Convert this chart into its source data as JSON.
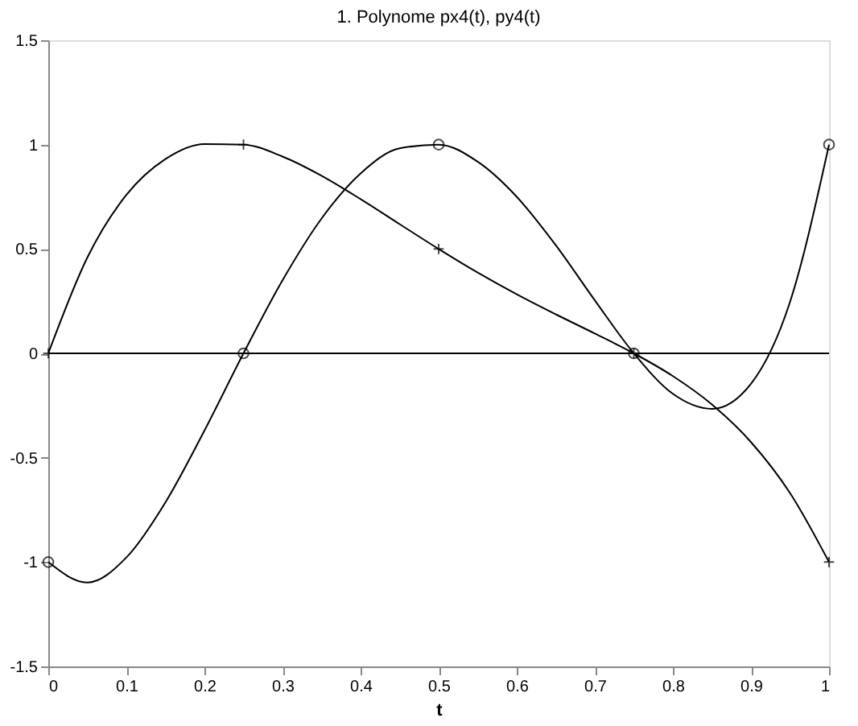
{
  "chart_data": {
    "type": "line",
    "title": "1. Polynome px4(t), py4(t)",
    "xlabel": "t",
    "xlim": [
      0,
      1
    ],
    "xticks": [
      0,
      0.1,
      0.2,
      0.3,
      0.4,
      0.5,
      0.6,
      0.7,
      0.8,
      0.9,
      1
    ],
    "ylim": [
      -1.5,
      1.5
    ],
    "yticks": [
      -1.5,
      -1,
      -0.5,
      0,
      0.5,
      1,
      1.5
    ],
    "grid": false,
    "ref_lines": [
      {
        "axis": "y",
        "value": 0,
        "color": "#000000"
      }
    ],
    "series": [
      {
        "type": "line",
        "marker": "none",
        "color": "#000000",
        "x": [
          0,
          0.05,
          0.1,
          0.15,
          0.2,
          0.25,
          0.3,
          0.35,
          0.4,
          0.45,
          0.5,
          0.55,
          0.6,
          0.65,
          0.7,
          0.75,
          0.8,
          0.85,
          0.9,
          0.95,
          1
        ],
        "values": [
          0,
          0.459,
          0.759,
          0.931,
          1.003,
          1,
          0.943,
          0.851,
          0.739,
          0.619,
          0.5,
          0.387,
          0.283,
          0.187,
          0.095,
          0,
          -0.109,
          -0.245,
          -0.425,
          -0.669,
          -1
        ]
      },
      {
        "type": "scatter",
        "marker": "cross",
        "color": "#000000",
        "x": [
          0,
          0.25,
          0.5,
          0.75,
          1
        ],
        "values": [
          0,
          1,
          0.5,
          0,
          -1
        ]
      },
      {
        "type": "line",
        "marker": "none",
        "color": "#000000",
        "x": [
          0,
          0.05,
          0.1,
          0.15,
          0.2,
          0.25,
          0.3,
          0.35,
          0.4,
          0.45,
          0.5,
          0.55,
          0.6,
          0.65,
          0.7,
          0.75,
          0.8,
          0.85,
          0.9,
          0.95,
          1
        ],
        "values": [
          -1,
          -1.098,
          -0.978,
          -0.714,
          -0.37,
          0,
          0.35,
          0.646,
          0.862,
          0.982,
          1,
          0.918,
          0.75,
          0.518,
          0.254,
          0,
          -0.194,
          -0.266,
          -0.146,
          0.246,
          1
        ]
      },
      {
        "type": "scatter",
        "marker": "circle",
        "color": "#000000",
        "x": [
          0,
          0.25,
          0.5,
          0.75,
          1
        ],
        "values": [
          -1,
          0,
          1,
          0,
          1
        ]
      }
    ]
  }
}
